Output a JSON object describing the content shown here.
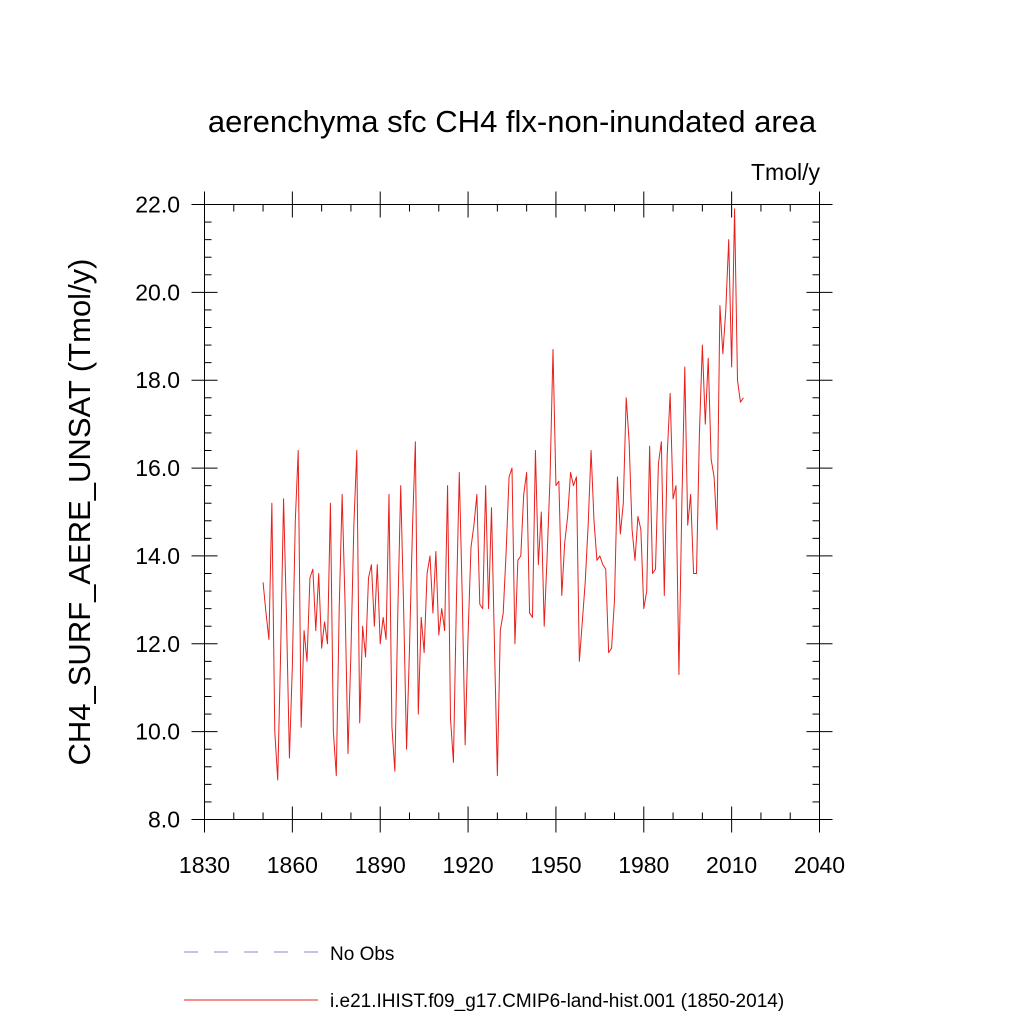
{
  "chart_data": {
    "type": "line",
    "title": "aerenchyma sfc CH4 flx-non-inundated area",
    "units_label": "Tmol/y",
    "ylabel": "CH4_SURF_AERE_UNSAT  (Tmol/y)",
    "xlabel": "",
    "xlim": [
      1830,
      2040
    ],
    "ylim": [
      8.0,
      22.0
    ],
    "x_major_ticks": [
      1830,
      1860,
      1890,
      1920,
      1950,
      1980,
      2010,
      2040
    ],
    "x_tick_labels": [
      "1830",
      "1860",
      "1890",
      "1920",
      "1950",
      "1980",
      "2010",
      "2040"
    ],
    "x_minor_step": 10,
    "y_major_ticks": [
      8,
      10,
      12,
      14,
      16,
      18,
      20,
      22
    ],
    "y_tick_labels": [
      "8.0",
      "10.0",
      "12.0",
      "14.0",
      "16.0",
      "18.0",
      "20.0",
      "22.0"
    ],
    "y_minor_step": 0.4,
    "grid": false,
    "legend": {
      "placement": "bottom",
      "entries": [
        {
          "label": "No Obs",
          "color": "#8a8ad0",
          "style": "dashed"
        },
        {
          "label": "i.e21.IHIST.f09_g17.CMIP6-land-hist.001 (1850-2014)",
          "color": "#e8201c",
          "style": "solid"
        }
      ]
    },
    "series": [
      {
        "color": "#e8201c",
        "x_start": 1850,
        "x_step": 1,
        "values": [
          13.4,
          12.7,
          12.1,
          15.2,
          10.0,
          8.9,
          11.8,
          15.3,
          12.6,
          9.4,
          11.5,
          14.8,
          16.4,
          10.1,
          12.3,
          11.6,
          13.5,
          13.7,
          12.3,
          13.6,
          11.9,
          12.5,
          12.0,
          15.2,
          10.0,
          9.0,
          12.8,
          15.4,
          12.9,
          9.5,
          11.8,
          14.7,
          16.4,
          10.2,
          12.4,
          11.7,
          13.5,
          13.8,
          12.4,
          13.8,
          12.0,
          12.6,
          12.1,
          15.4,
          10.1,
          9.1,
          12.7,
          15.6,
          12.8,
          9.6,
          11.9,
          14.6,
          16.6,
          10.4,
          12.6,
          11.8,
          13.6,
          14.0,
          12.7,
          14.1,
          12.2,
          12.8,
          12.3,
          15.6,
          10.3,
          9.3,
          12.9,
          15.9,
          13.1,
          9.7,
          12.2,
          14.2,
          14.7,
          15.4,
          12.9,
          12.8,
          15.6,
          12.8,
          15.1,
          12.0,
          9.0,
          12.3,
          12.7,
          14.1,
          15.8,
          16.0,
          12.0,
          13.9,
          14.0,
          15.4,
          15.9,
          12.7,
          12.6,
          16.4,
          13.8,
          15.0,
          12.4,
          14.0,
          15.8,
          18.7,
          15.6,
          15.7,
          13.1,
          14.3,
          14.9,
          15.9,
          15.6,
          15.8,
          11.6,
          12.5,
          13.4,
          14.7,
          16.4,
          14.8,
          13.9,
          14.0,
          13.8,
          13.7,
          11.8,
          11.9,
          13.0,
          15.8,
          14.5,
          15.2,
          17.6,
          16.6,
          14.6,
          13.9,
          14.9,
          14.6,
          12.8,
          13.2,
          16.5,
          13.6,
          13.7,
          16.1,
          16.6,
          13.1,
          16.3,
          17.7,
          15.3,
          15.6,
          11.3,
          15.2,
          18.3,
          14.7,
          15.4,
          13.6,
          13.6,
          16.8,
          18.8,
          17.0,
          18.5,
          16.2,
          15.8,
          14.6,
          19.7,
          18.6,
          19.6,
          21.2,
          18.3,
          21.9,
          18.0,
          17.5,
          17.6
        ]
      }
    ]
  }
}
